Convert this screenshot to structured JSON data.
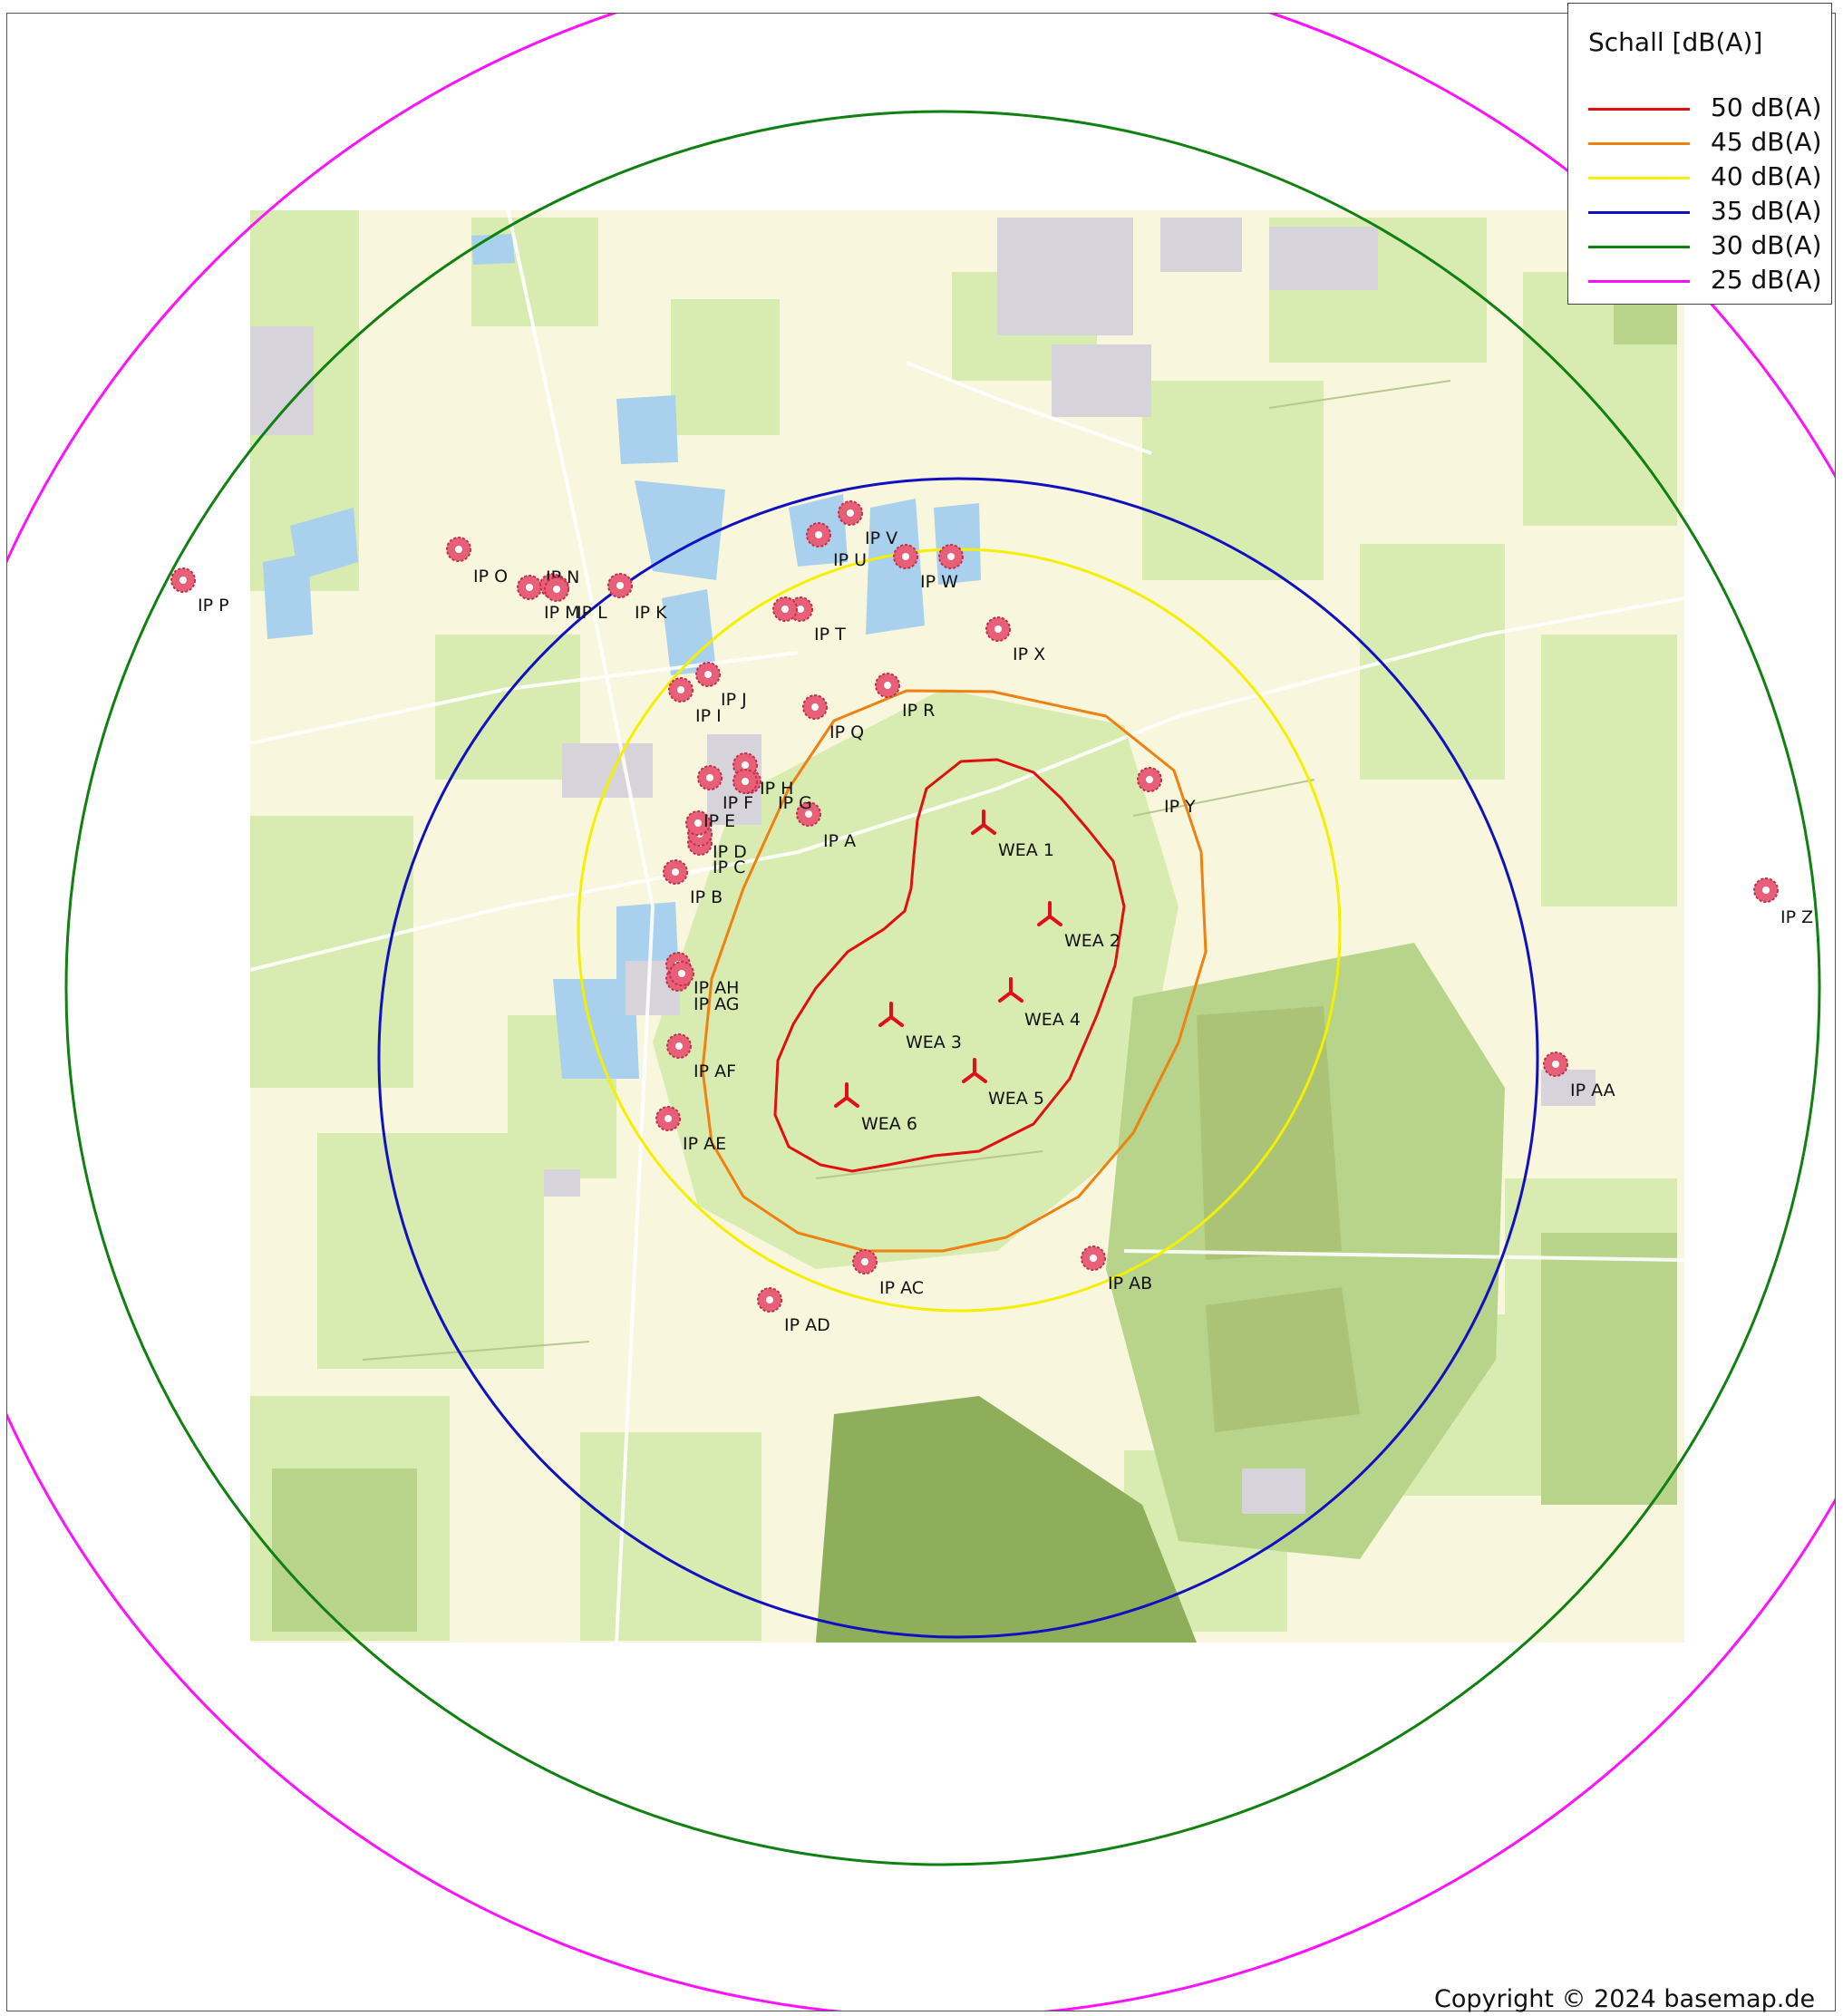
{
  "legend": {
    "title": "Schall [dB(A)]",
    "items": [
      {
        "label": "50 dB(A)",
        "color": "#e01010"
      },
      {
        "label": "45 dB(A)",
        "color": "#f08010"
      },
      {
        "label": "40 dB(A)",
        "color": "#f5f000"
      },
      {
        "label": "35 dB(A)",
        "color": "#1010c0"
      },
      {
        "label": "30 dB(A)",
        "color": "#108010"
      },
      {
        "label": "25 dB(A)",
        "color": "#ff10ff"
      }
    ]
  },
  "turbines": [
    "WEA 1",
    "WEA 2",
    "WEA 3",
    "WEA 4",
    "WEA 5",
    "WEA 6"
  ],
  "turbine_color": "#e0101a",
  "immission_points": [
    "IP A",
    "IP B",
    "IP C",
    "IP D",
    "IP E",
    "IP F",
    "IP G",
    "IP H",
    "IP I",
    "IP J",
    "IP K",
    "IP L",
    "IP M",
    "IP N",
    "IP O",
    "IP P",
    "IP Q",
    "IP R",
    "IP T",
    "IP U",
    "IP V",
    "IP W",
    "IP X",
    "IP Y",
    "IP Z",
    "IP AA",
    "IP AB",
    "IP AC",
    "IP AD",
    "IP AE",
    "IP AF",
    "IP AG",
    "IP AH"
  ],
  "immission_point_color": "#e86078",
  "map_colors": {
    "field": "#f8f6dc",
    "grass": "#d8ebb0",
    "forest": "#b7d48a",
    "dark_forest": "#8eae5c",
    "water": "#a9d1ee",
    "settlement": "#d6d3da"
  },
  "copyright": "Copyright © 2024 basemap.de"
}
